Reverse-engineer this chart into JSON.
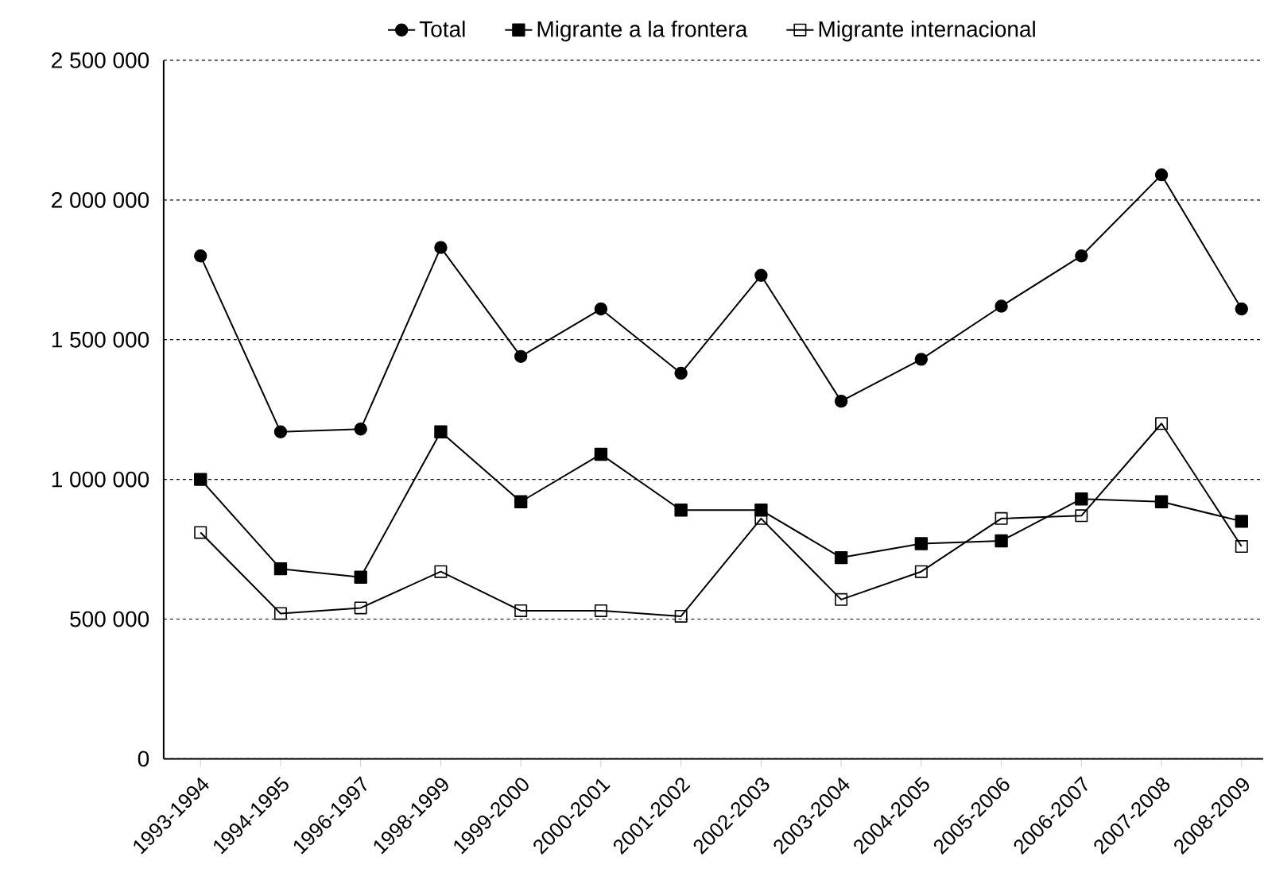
{
  "chart_data": {
    "type": "line",
    "categories": [
      "1993-1994",
      "1994-1995",
      "1996-1997",
      "1998-1999",
      "1999-2000",
      "2000-2001",
      "2001-2002",
      "2002-2003",
      "2003-2004",
      "2004-2005",
      "2005-2006",
      "2006-2007",
      "2007-2008",
      "2008-2009"
    ],
    "series": [
      {
        "name": "Total",
        "color": "#000000",
        "marker": "circle",
        "values": [
          1800000,
          1170000,
          1180000,
          1830000,
          1440000,
          1610000,
          1380000,
          1730000,
          1280000,
          1430000,
          1620000,
          1800000,
          2090000,
          1610000
        ]
      },
      {
        "name": "Migrante a la frontera",
        "color": "#000000",
        "marker": "square",
        "values": [
          1000000,
          680000,
          650000,
          1170000,
          920000,
          1090000,
          890000,
          890000,
          720000,
          770000,
          780000,
          930000,
          920000,
          850000
        ]
      },
      {
        "name": "Migrante internacional",
        "color": "#000000",
        "marker": "square",
        "values": [
          810000,
          520000,
          540000,
          670000,
          530000,
          530000,
          510000,
          860000,
          570000,
          670000,
          860000,
          870000,
          1200000,
          760000
        ]
      }
    ],
    "ylim": [
      0,
      2500000
    ],
    "yticks": [
      0,
      {
        "value": 500000,
        "label": "500 000"
      },
      {
        "value": 1000000,
        "label": "1 000 000"
      },
      {
        "value": 1500000,
        "label": "1 500 000"
      },
      {
        "value": 2000000,
        "label": "2 000 000"
      },
      {
        "value": 2500000,
        "label": "2 500 000"
      }
    ],
    "grid": "y",
    "legend": "top",
    "line_style": "solid"
  }
}
